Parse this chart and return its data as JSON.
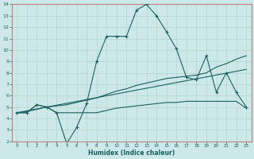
{
  "xlabel": "Humidex (Indice chaleur)",
  "bg_color": "#cce8e8",
  "grid_color": "#b8d8d0",
  "line_color": "#1a6060",
  "border_color": "#c08080",
  "xlim": [
    -0.5,
    23.5
  ],
  "ylim": [
    2,
    14
  ],
  "xticks": [
    0,
    1,
    2,
    3,
    4,
    5,
    6,
    7,
    8,
    9,
    10,
    11,
    12,
    13,
    14,
    15,
    16,
    17,
    18,
    19,
    20,
    21,
    22,
    23
  ],
  "yticks": [
    2,
    3,
    4,
    5,
    6,
    7,
    8,
    9,
    10,
    11,
    12,
    13,
    14
  ],
  "line1_x": [
    0,
    1,
    2,
    3,
    4,
    5,
    6,
    7,
    8,
    9,
    10,
    11,
    12,
    13,
    14,
    15,
    16,
    17,
    18,
    19,
    20,
    21,
    22,
    23
  ],
  "line1_y": [
    4.5,
    4.5,
    5.2,
    5.0,
    4.5,
    1.8,
    3.2,
    5.3,
    9.0,
    11.2,
    11.2,
    11.2,
    13.5,
    14.0,
    13.0,
    11.6,
    10.1,
    7.6,
    7.4,
    9.5,
    6.3,
    8.0,
    6.3,
    5.0
  ],
  "line2_x": [
    0,
    1,
    2,
    3,
    4,
    5,
    6,
    7,
    8,
    9,
    10,
    11,
    12,
    13,
    14,
    15,
    16,
    17,
    18,
    19,
    20,
    21,
    22,
    23
  ],
  "line2_y": [
    4.5,
    4.5,
    5.2,
    5.0,
    4.5,
    4.5,
    4.5,
    4.5,
    4.5,
    4.7,
    4.9,
    5.0,
    5.1,
    5.2,
    5.3,
    5.4,
    5.4,
    5.5,
    5.5,
    5.5,
    5.5,
    5.5,
    5.5,
    4.9
  ],
  "line3_x": [
    0,
    23
  ],
  "line3_y": [
    4.5,
    8.3
  ],
  "line4_x": [
    0,
    1,
    2,
    3,
    4,
    5,
    6,
    7,
    8,
    9,
    10,
    11,
    12,
    13,
    14,
    15,
    16,
    17,
    18,
    19,
    20,
    21,
    22,
    23
  ],
  "line4_y": [
    4.5,
    4.6,
    4.8,
    5.0,
    5.1,
    5.2,
    5.4,
    5.6,
    5.8,
    6.1,
    6.4,
    6.6,
    6.9,
    7.1,
    7.3,
    7.5,
    7.6,
    7.7,
    7.8,
    8.0,
    8.5,
    8.8,
    9.2,
    9.5
  ]
}
